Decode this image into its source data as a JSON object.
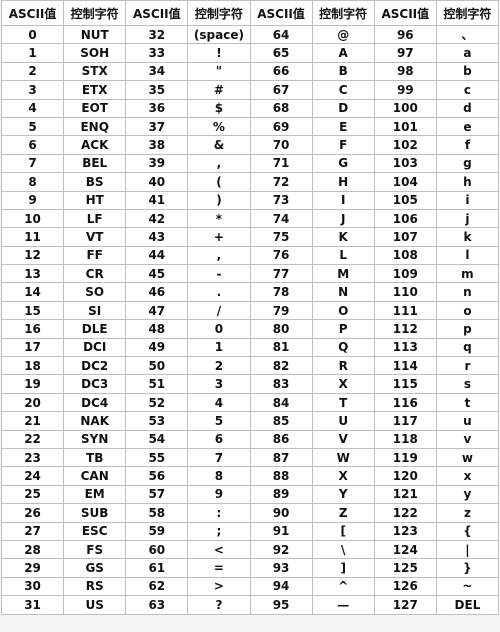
{
  "headers": [
    "ASCII值",
    "控制字符",
    "ASCII值",
    "控制字符",
    "ASCII值",
    "控制字符",
    "ASCII值",
    "控制字符"
  ],
  "rows": [
    [
      "0",
      "NUT",
      "32",
      "(space)",
      "64",
      "@",
      "96",
      "、"
    ],
    [
      "1",
      "SOH",
      "33",
      "!",
      "65",
      "A",
      "97",
      "a"
    ],
    [
      "2",
      "STX",
      "34",
      "\"",
      "66",
      "B",
      "98",
      "b"
    ],
    [
      "3",
      "ETX",
      "35",
      "#",
      "67",
      "C",
      "99",
      "c"
    ],
    [
      "4",
      "EOT",
      "36",
      "$",
      "68",
      "D",
      "100",
      "d"
    ],
    [
      "5",
      "ENQ",
      "37",
      "%",
      "69",
      "E",
      "101",
      "e"
    ],
    [
      "6",
      "ACK",
      "38",
      "&",
      "70",
      "F",
      "102",
      "f"
    ],
    [
      "7",
      "BEL",
      "39",
      ",",
      "71",
      "G",
      "103",
      "g"
    ],
    [
      "8",
      "BS",
      "40",
      "(",
      "72",
      "H",
      "104",
      "h"
    ],
    [
      "9",
      "HT",
      "41",
      ")",
      "73",
      "I",
      "105",
      "i"
    ],
    [
      "10",
      "LF",
      "42",
      "*",
      "74",
      "J",
      "106",
      "j"
    ],
    [
      "11",
      "VT",
      "43",
      "+",
      "75",
      "K",
      "107",
      "k"
    ],
    [
      "12",
      "FF",
      "44",
      ",",
      "76",
      "L",
      "108",
      "l"
    ],
    [
      "13",
      "CR",
      "45",
      "-",
      "77",
      "M",
      "109",
      "m"
    ],
    [
      "14",
      "SO",
      "46",
      ".",
      "78",
      "N",
      "110",
      "n"
    ],
    [
      "15",
      "SI",
      "47",
      "/",
      "79",
      "O",
      "111",
      "o"
    ],
    [
      "16",
      "DLE",
      "48",
      "0",
      "80",
      "P",
      "112",
      "p"
    ],
    [
      "17",
      "DCI",
      "49",
      "1",
      "81",
      "Q",
      "113",
      "q"
    ],
    [
      "18",
      "DC2",
      "50",
      "2",
      "82",
      "R",
      "114",
      "r"
    ],
    [
      "19",
      "DC3",
      "51",
      "3",
      "83",
      "X",
      "115",
      "s"
    ],
    [
      "20",
      "DC4",
      "52",
      "4",
      "84",
      "T",
      "116",
      "t"
    ],
    [
      "21",
      "NAK",
      "53",
      "5",
      "85",
      "U",
      "117",
      "u"
    ],
    [
      "22",
      "SYN",
      "54",
      "6",
      "86",
      "V",
      "118",
      "v"
    ],
    [
      "23",
      "TB",
      "55",
      "7",
      "87",
      "W",
      "119",
      "w"
    ],
    [
      "24",
      "CAN",
      "56",
      "8",
      "88",
      "X",
      "120",
      "x"
    ],
    [
      "25",
      "EM",
      "57",
      "9",
      "89",
      "Y",
      "121",
      "y"
    ],
    [
      "26",
      "SUB",
      "58",
      ":",
      "90",
      "Z",
      "122",
      "z"
    ],
    [
      "27",
      "ESC",
      "59",
      ";",
      "91",
      "[",
      "123",
      "{"
    ],
    [
      "28",
      "FS",
      "60",
      "<",
      "92",
      "\\",
      "124",
      "|"
    ],
    [
      "29",
      "GS",
      "61",
      "=",
      "93",
      "]",
      "125",
      "}"
    ],
    [
      "30",
      "RS",
      "62",
      ">",
      "94",
      "^",
      "126",
      "~"
    ],
    [
      "31",
      "US",
      "63",
      "?",
      "95",
      "—",
      "127",
      "DEL"
    ]
  ]
}
